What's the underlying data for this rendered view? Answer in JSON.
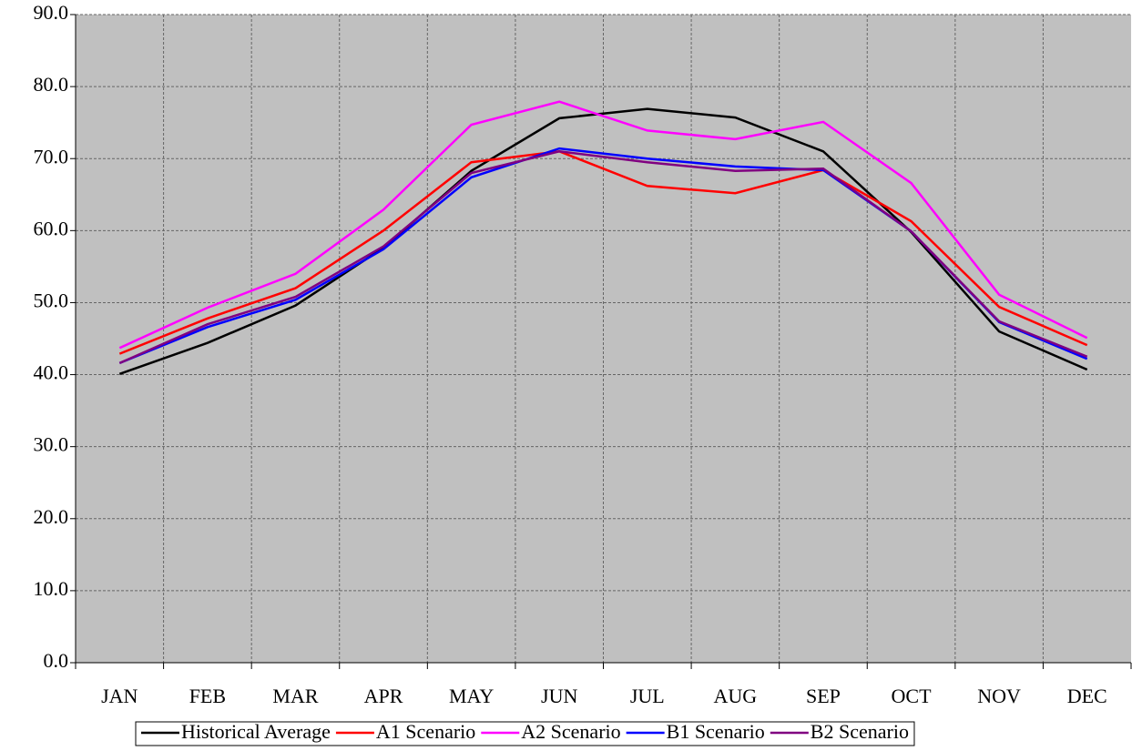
{
  "chart_data": {
    "type": "line",
    "categories": [
      "JAN",
      "FEB",
      "MAR",
      "APR",
      "MAY",
      "JUN",
      "JUL",
      "AUG",
      "SEP",
      "OCT",
      "NOV",
      "DEC"
    ],
    "series": [
      {
        "name": "Historical Average",
        "color": "#000000",
        "values": [
          40.1,
          44.4,
          49.6,
          57.6,
          68.3,
          75.6,
          76.9,
          75.7,
          71.0,
          59.8,
          46.0,
          40.7
        ]
      },
      {
        "name": "A1 Scenario",
        "color": "#ff0000",
        "values": [
          42.9,
          47.8,
          52.0,
          60.0,
          69.5,
          71.0,
          66.2,
          65.2,
          68.4,
          61.3,
          49.4,
          44.1
        ]
      },
      {
        "name": "A2 Scenario",
        "color": "#ff00ff",
        "values": [
          43.7,
          49.3,
          54.0,
          62.9,
          74.7,
          77.9,
          73.9,
          72.7,
          75.1,
          66.6,
          51.1,
          45.1
        ]
      },
      {
        "name": "B1 Scenario",
        "color": "#0000ff",
        "values": [
          41.6,
          46.6,
          50.4,
          57.4,
          67.4,
          71.4,
          70.0,
          68.9,
          68.4,
          59.9,
          47.3,
          42.2
        ]
      },
      {
        "name": "B2 Scenario",
        "color": "#800080",
        "values": [
          41.6,
          47.0,
          50.8,
          57.8,
          68.0,
          71.0,
          69.5,
          68.3,
          68.6,
          59.9,
          47.4,
          42.5
        ]
      }
    ],
    "ylim": [
      0,
      90
    ],
    "yticks": [
      {
        "value": 0,
        "label": "0.0"
      },
      {
        "value": 10,
        "label": "10.0"
      },
      {
        "value": 20,
        "label": "20.0"
      },
      {
        "value": 30,
        "label": "30.0"
      },
      {
        "value": 40,
        "label": "40.0"
      },
      {
        "value": 50,
        "label": "50.0"
      },
      {
        "value": 60,
        "label": "60.0"
      },
      {
        "value": 70,
        "label": "70.0"
      },
      {
        "value": 80,
        "label": "80.0"
      },
      {
        "value": 90,
        "label": "90.0"
      }
    ],
    "grid": true,
    "plot_background": "#c0c0c0",
    "legend": "bottom"
  }
}
